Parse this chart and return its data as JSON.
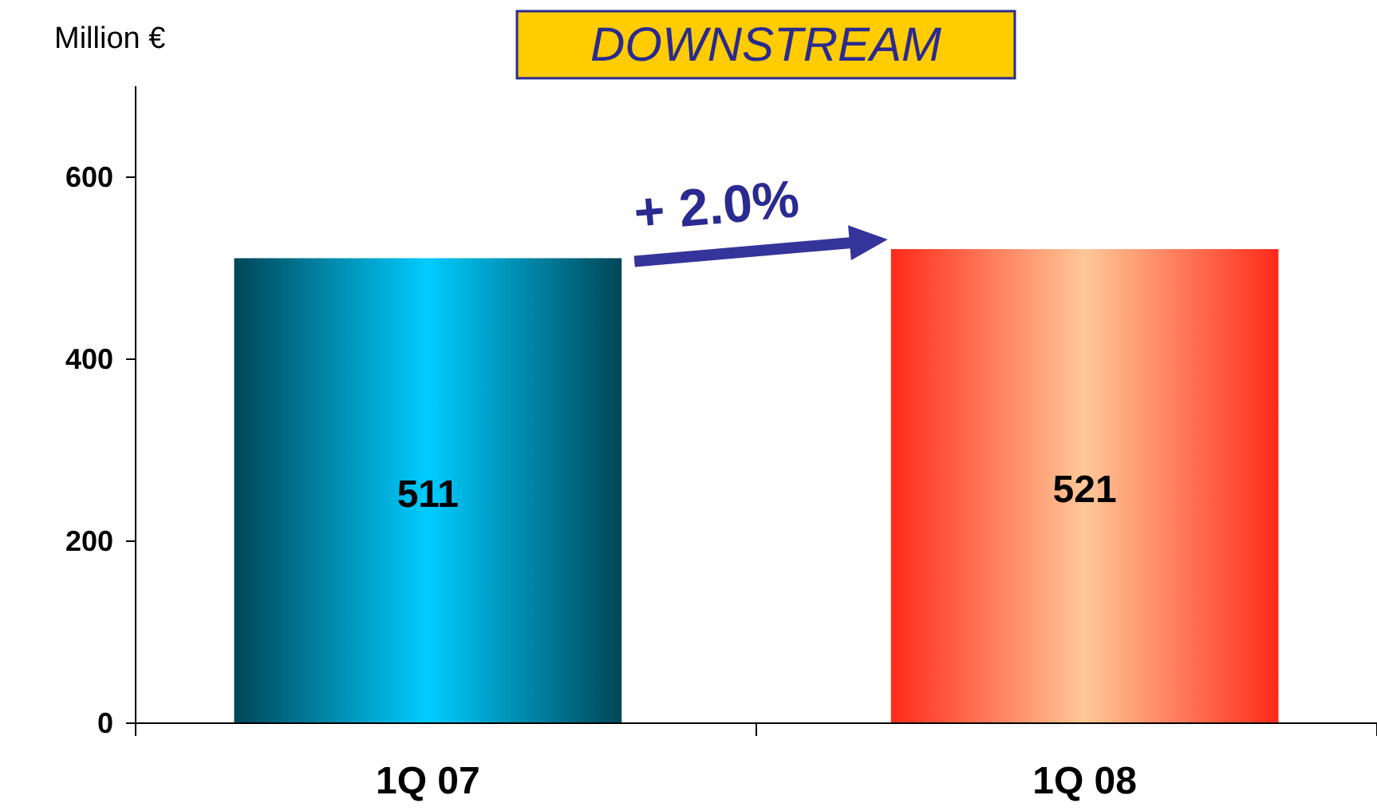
{
  "chart_data": {
    "type": "bar",
    "title": "DOWNSTREAM",
    "ylabel": "Million €",
    "categories": [
      "1Q 07",
      "1Q 08"
    ],
    "values": [
      511,
      521
    ],
    "colors": [
      "#00ccff",
      "#ffc898"
    ],
    "ylim": [
      0,
      700
    ],
    "yticks": [
      0,
      200,
      400,
      600
    ],
    "grid": false,
    "data_labels": true,
    "annotations": [
      "+ 2.0%"
    ]
  }
}
